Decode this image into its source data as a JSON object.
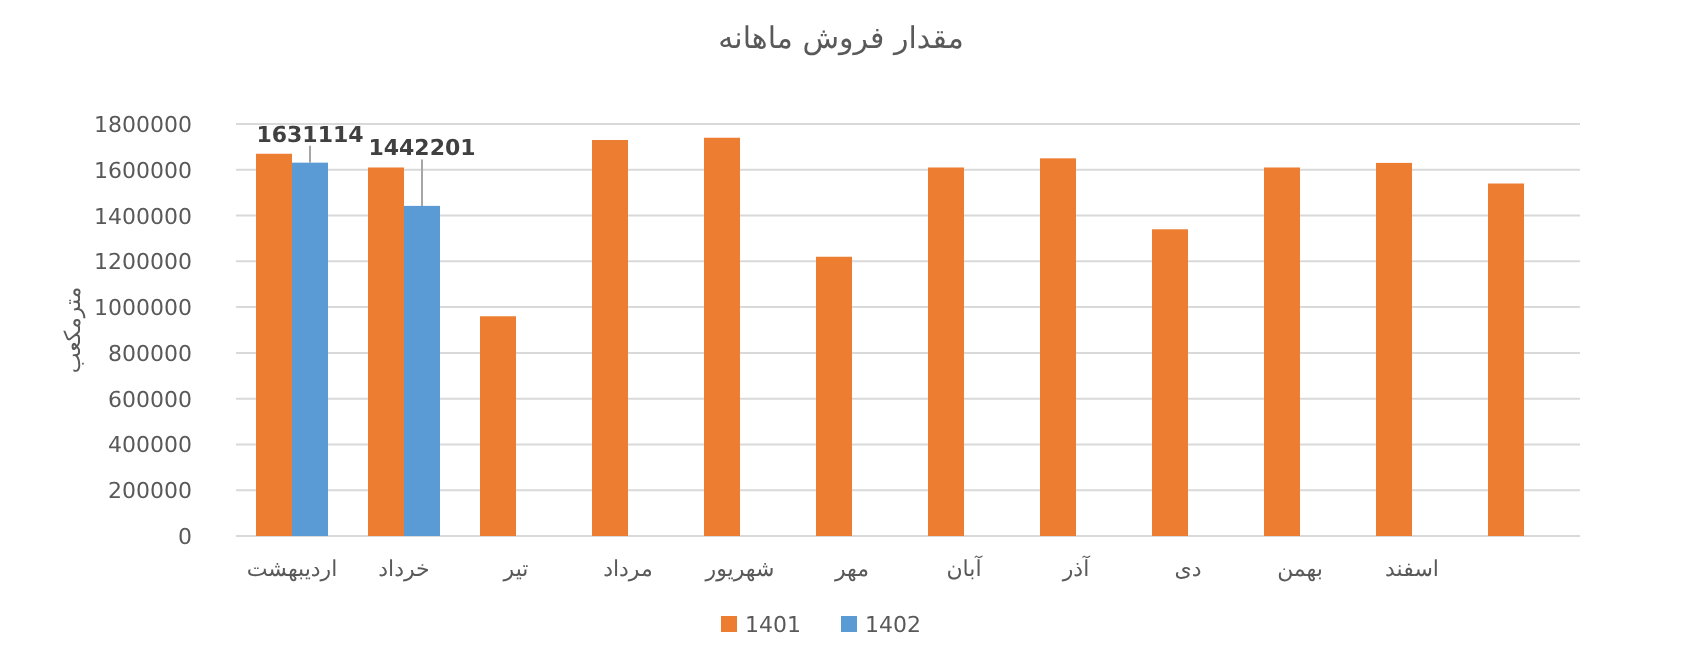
{
  "chart_data": {
    "type": "bar",
    "title": "مقدار فروش ماهانه",
    "ylabel": "مترمکعب",
    "categories": [
      "اردیبهشت",
      "خرداد",
      "تیر",
      "مرداد",
      "شهریور",
      "مهر",
      "آبان",
      "آذر",
      "دی",
      "بهمن",
      "اسفند",
      null
    ],
    "series": [
      {
        "name": "1401",
        "color": "#ed7d31",
        "values": [
          1670000,
          1610000,
          960000,
          1730000,
          1740000,
          1220000,
          1610000,
          1650000,
          1340000,
          1610000,
          1630000,
          1540000
        ]
      },
      {
        "name": "1402",
        "color": "#5b9bd5",
        "values": [
          1631114,
          1442201,
          null,
          null,
          null,
          null,
          null,
          null,
          null,
          null,
          null,
          null
        ],
        "value_labels": [
          "1631114",
          "1442201",
          null,
          null,
          null,
          null,
          null,
          null,
          null,
          null,
          null,
          null
        ]
      }
    ],
    "ylim": [
      0,
      1800000
    ],
    "yticks": [
      0,
      200000,
      400000,
      600000,
      800000,
      1000000,
      1200000,
      1400000,
      1600000,
      1800000
    ],
    "grid": "y",
    "legend": "bottom"
  }
}
